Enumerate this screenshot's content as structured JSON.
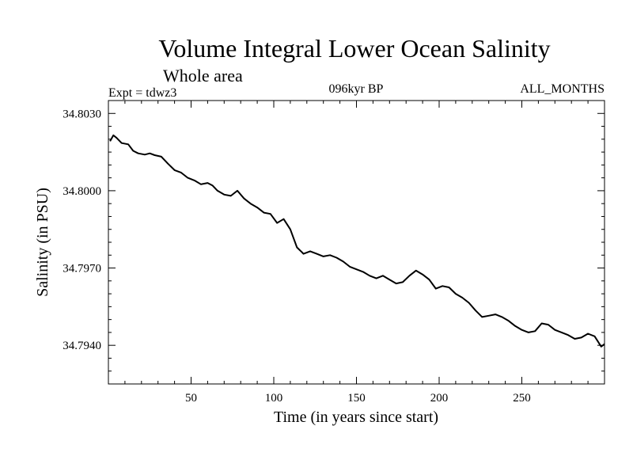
{
  "chart_data": {
    "type": "line",
    "title": "Volume Integral Lower Ocean Salinity",
    "subtitle": "Whole area",
    "experiment": "Expt = tdwz3",
    "period": "096kyr BP",
    "months": "ALL_MONTHS",
    "xlabel": "Time (in years since start)",
    "ylabel": "Salinity (in PSU)",
    "xlim": [
      0,
      300
    ],
    "ylim": [
      34.7925,
      34.8035
    ],
    "xticks": [
      50,
      100,
      150,
      200,
      250
    ],
    "xtick_labels": [
      "50",
      "100",
      "150",
      "200",
      "250"
    ],
    "yticks": [
      34.803,
      34.8,
      34.797,
      34.794
    ],
    "ytick_labels": [
      "34.8030",
      "34.8000",
      "34.7970",
      "34.7940"
    ],
    "grid": false,
    "series": [
      {
        "color": "#000000",
        "x": [
          1,
          3,
          5,
          8,
          12,
          15,
          18,
          22,
          25,
          28,
          32,
          36,
          40,
          44,
          48,
          52,
          56,
          60,
          63,
          66,
          70,
          74,
          78,
          82,
          86,
          90,
          94,
          98,
          102,
          106,
          110,
          114,
          118,
          122,
          126,
          130,
          134,
          138,
          142,
          146,
          150,
          154,
          158,
          162,
          166,
          170,
          174,
          178,
          182,
          186,
          190,
          194,
          198,
          202,
          206,
          210,
          214,
          218,
          222,
          226,
          230,
          234,
          238,
          242,
          246,
          250,
          254,
          258,
          262,
          266,
          270,
          274,
          278,
          282,
          286,
          290,
          294,
          298,
          300
        ],
        "y": [
          34.80192,
          34.80215,
          34.80205,
          34.80185,
          34.8018,
          34.80155,
          34.80145,
          34.8014,
          34.80145,
          34.80138,
          34.80132,
          34.80105,
          34.8008,
          34.8007,
          34.8005,
          34.8004,
          34.80025,
          34.8003,
          34.8002,
          34.8,
          34.79985,
          34.7998,
          34.8,
          34.7997,
          34.7995,
          34.79935,
          34.79915,
          34.7991,
          34.79875,
          34.7989,
          34.7985,
          34.7978,
          34.79755,
          34.79765,
          34.79755,
          34.79745,
          34.7975,
          34.7974,
          34.79725,
          34.79705,
          34.79695,
          34.79685,
          34.7967,
          34.7966,
          34.7967,
          34.79655,
          34.7964,
          34.79645,
          34.7967,
          34.7969,
          34.79675,
          34.79655,
          34.7962,
          34.7963,
          34.79625,
          34.796,
          34.79585,
          34.79565,
          34.79535,
          34.7951,
          34.79515,
          34.7952,
          34.7951,
          34.79495,
          34.79475,
          34.7946,
          34.7945,
          34.79455,
          34.79485,
          34.7948,
          34.7946,
          34.7945,
          34.7944,
          34.79425,
          34.7943,
          34.79445,
          34.79435,
          34.79395,
          34.79405
        ]
      }
    ]
  }
}
